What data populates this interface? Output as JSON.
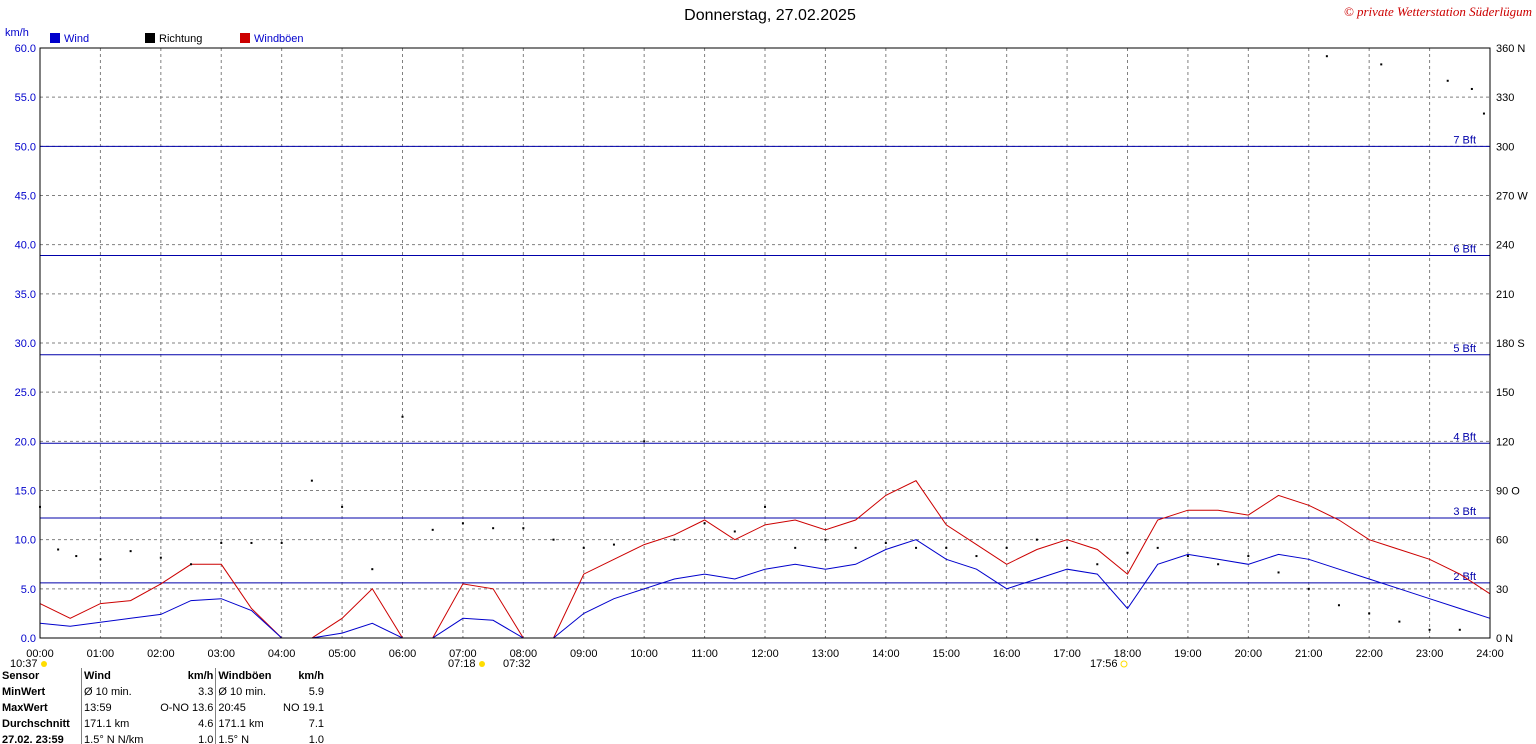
{
  "header": {
    "title": "Donnerstag, 27.02.2025",
    "copyright": "© private Wetterstation Süderlügum"
  },
  "legend": {
    "unit": "km/h",
    "items": [
      {
        "label": "Wind",
        "color": "#0000cc"
      },
      {
        "label": "Richtung",
        "color": "#000000"
      },
      {
        "label": "Windböen",
        "color": "#cc0000"
      }
    ]
  },
  "events": {
    "left_time": "10:37",
    "sunrise_a": "07:18",
    "sunrise_b": "07:32",
    "sunset": "17:56"
  },
  "chart_data": {
    "type": "line",
    "title": "Donnerstag, 27.02.2025",
    "ylabel": "km/h",
    "ylim": [
      0,
      60
    ],
    "y_ticks": [
      "0.0",
      "5.0",
      "10.0",
      "15.0",
      "20.0",
      "25.0",
      "30.0",
      "35.0",
      "40.0",
      "45.0",
      "50.0",
      "55.0",
      "60.0"
    ],
    "y2_ticks": [
      "0 N",
      "30",
      "60",
      "90 O",
      "120",
      "150",
      "180 S",
      "210",
      "240",
      "270 W",
      "300",
      "330",
      "360 N"
    ],
    "y2lim": [
      0,
      360
    ],
    "x_ticks": [
      "00:00",
      "01:00",
      "02:00",
      "03:00",
      "04:00",
      "05:00",
      "06:00",
      "07:00",
      "08:00",
      "09:00",
      "10:00",
      "11:00",
      "12:00",
      "13:00",
      "14:00",
      "15:00",
      "16:00",
      "17:00",
      "18:00",
      "19:00",
      "20:00",
      "21:00",
      "22:00",
      "23:00",
      "24:00"
    ],
    "beaufort": [
      {
        "label": "2 Bft",
        "value": 5.6
      },
      {
        "label": "3 Bft",
        "value": 12.2
      },
      {
        "label": "4 Bft",
        "value": 19.8
      },
      {
        "label": "5 Bft",
        "value": 28.8
      },
      {
        "label": "6 Bft",
        "value": 38.9
      },
      {
        "label": "7 Bft",
        "value": 50.0
      }
    ],
    "grid": true,
    "legend_position": "top-left",
    "x_hours": [
      0,
      0.5,
      1,
      1.5,
      2,
      2.5,
      3,
      3.5,
      4,
      4.5,
      5,
      5.5,
      6,
      6.5,
      7,
      7.5,
      8,
      8.5,
      9,
      9.5,
      10,
      10.5,
      11,
      11.5,
      12,
      12.5,
      13,
      13.5,
      14,
      14.5,
      15,
      15.5,
      16,
      16.5,
      17,
      17.5,
      18,
      18.5,
      19,
      19.5,
      20,
      20.5,
      21,
      21.5,
      22,
      22.5,
      23,
      23.5,
      24
    ],
    "series": [
      {
        "name": "Wind",
        "color": "#0000cc",
        "values": [
          1.5,
          1.2,
          1.6,
          2.0,
          2.4,
          3.8,
          4.0,
          2.8,
          0,
          0,
          0.5,
          1.5,
          0,
          0,
          2.0,
          1.8,
          0,
          0,
          2.5,
          4.0,
          5.0,
          6.0,
          6.5,
          6.0,
          7.0,
          7.5,
          7.0,
          7.5,
          9.0,
          10.0,
          8.0,
          7.0,
          5.0,
          6.0,
          7.0,
          6.5,
          3.0,
          7.5,
          8.5,
          8.0,
          7.5,
          8.5,
          8.0,
          7.0,
          6.0,
          5.0,
          4.0,
          3.0,
          2.0
        ]
      },
      {
        "name": "Windböen",
        "color": "#cc0000",
        "values": [
          3.5,
          2.0,
          3.5,
          3.8,
          5.5,
          7.5,
          7.5,
          3.0,
          0,
          0,
          2.0,
          5.0,
          0,
          0,
          5.5,
          5.0,
          0,
          0,
          6.5,
          8.0,
          9.5,
          10.5,
          12.0,
          10.0,
          11.5,
          12.0,
          11.0,
          12.0,
          14.5,
          16.0,
          11.5,
          9.5,
          7.5,
          9.0,
          10.0,
          9.0,
          6.5,
          12.0,
          13.0,
          13.0,
          12.5,
          14.5,
          13.5,
          12.0,
          10.0,
          9.0,
          8.0,
          6.5,
          4.5
        ]
      }
    ],
    "direction_points": [
      [
        0,
        80
      ],
      [
        0.3,
        54
      ],
      [
        0.6,
        50
      ],
      [
        1.0,
        48
      ],
      [
        1.5,
        53
      ],
      [
        2.0,
        49
      ],
      [
        2.5,
        45
      ],
      [
        3.0,
        58
      ],
      [
        3.5,
        58
      ],
      [
        4.0,
        58
      ],
      [
        4.5,
        96
      ],
      [
        5.0,
        80
      ],
      [
        5.5,
        42
      ],
      [
        6.0,
        135
      ],
      [
        6.5,
        66
      ],
      [
        7.0,
        70
      ],
      [
        7.5,
        67
      ],
      [
        8.0,
        67
      ],
      [
        8.5,
        60
      ],
      [
        9.0,
        55
      ],
      [
        9.5,
        57
      ],
      [
        10.0,
        120
      ],
      [
        10.5,
        60
      ],
      [
        11.0,
        70
      ],
      [
        11.5,
        65
      ],
      [
        12.0,
        80
      ],
      [
        12.5,
        55
      ],
      [
        13.0,
        60
      ],
      [
        13.5,
        55
      ],
      [
        14.0,
        58
      ],
      [
        14.5,
        55
      ],
      [
        15.0,
        55
      ],
      [
        15.5,
        50
      ],
      [
        16.0,
        55
      ],
      [
        16.5,
        60
      ],
      [
        17.0,
        55
      ],
      [
        17.5,
        45
      ],
      [
        18.0,
        52
      ],
      [
        18.5,
        55
      ],
      [
        19.0,
        50
      ],
      [
        19.5,
        45
      ],
      [
        20.0,
        50
      ],
      [
        20.5,
        40
      ],
      [
        21.0,
        30
      ],
      [
        21.5,
        20
      ],
      [
        22.0,
        15
      ],
      [
        22.5,
        10
      ],
      [
        23.0,
        5
      ],
      [
        23.5,
        5
      ],
      [
        21.3,
        355
      ],
      [
        22.2,
        350
      ],
      [
        23.3,
        340
      ],
      [
        23.7,
        335
      ],
      [
        23.9,
        320
      ]
    ]
  },
  "stats": {
    "headers": [
      "Sensor",
      "Wind",
      "km/h",
      "Windböen",
      "km/h"
    ],
    "rows": [
      {
        "label": "MinWert",
        "w_time": "Ø 10 min.",
        "w_val": "3.3",
        "g_time": "Ø 10 min.",
        "g_val": "5.9"
      },
      {
        "label": "MaxWert",
        "w_time": "13:59",
        "w_val": "O-NO 13.6",
        "g_time": "20:45",
        "g_val": "NO 19.1"
      },
      {
        "label": "Durchschnitt",
        "w_time": "171.1 km",
        "w_val": "4.6",
        "g_time": "171.1 km",
        "g_val": "7.1"
      },
      {
        "label": "27.02. 23:59",
        "w_time": "1.5° N N/km",
        "w_val": "1.0",
        "g_time": "1.5° N",
        "g_val": "1.0"
      }
    ]
  }
}
